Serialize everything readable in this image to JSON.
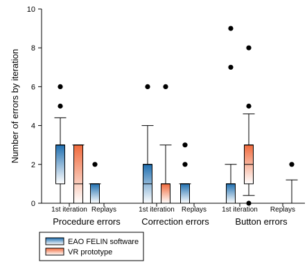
{
  "chart_data": {
    "type": "boxplot",
    "ylabel": "Number of errors by iteration",
    "ylim": [
      0,
      10
    ],
    "yticks": [
      0,
      2,
      4,
      6,
      8,
      10
    ],
    "groups": [
      {
        "label": "Procedure errors",
        "categories": [
          "1st iteration",
          "Replays"
        ]
      },
      {
        "label": "Correction errors",
        "categories": [
          "1st iteration",
          "Replays"
        ]
      },
      {
        "label": "Button errors",
        "categories": [
          "1st iteration",
          "Replays"
        ]
      }
    ],
    "series": [
      {
        "name": "EAO FELIN software",
        "color_top": "#1f6fb0",
        "color_bottom": "#ffffff"
      },
      {
        "name": "VR prototype",
        "color_top": "#f06a3c",
        "color_bottom": "#ffffff"
      }
    ],
    "boxes": [
      {
        "group": 0,
        "category": 0,
        "series": 0,
        "q1": 1,
        "median": 3,
        "q3": 3,
        "whisker_low": 0,
        "whisker_high": 4.4,
        "outliers": [
          5,
          6
        ]
      },
      {
        "group": 0,
        "category": 0,
        "series": 1,
        "q1": 0,
        "median": 1,
        "q3": 3,
        "whisker_low": 0,
        "whisker_high": 3,
        "outliers": []
      },
      {
        "group": 0,
        "category": 1,
        "series": 0,
        "q1": 0,
        "median": 0,
        "q3": 1,
        "whisker_low": 0,
        "whisker_high": 1,
        "outliers": [
          2
        ]
      },
      {
        "group": 1,
        "category": 0,
        "series": 0,
        "q1": 0,
        "median": 1,
        "q3": 2,
        "whisker_low": 0,
        "whisker_high": 4,
        "outliers": [
          6
        ]
      },
      {
        "group": 1,
        "category": 0,
        "series": 1,
        "q1": 0,
        "median": 0,
        "q3": 1,
        "whisker_low": 0,
        "whisker_high": 3,
        "outliers": [
          6
        ]
      },
      {
        "group": 1,
        "category": 1,
        "series": 0,
        "q1": 0,
        "median": 0,
        "q3": 1,
        "whisker_low": 0,
        "whisker_high": 1,
        "outliers": [
          2,
          3
        ]
      },
      {
        "group": 2,
        "category": 0,
        "series": 0,
        "q1": 0,
        "median": 0,
        "q3": 1,
        "whisker_low": 0,
        "whisker_high": 2,
        "outliers": [
          7,
          9
        ]
      },
      {
        "group": 2,
        "category": 0,
        "series": 1,
        "q1": 1,
        "median": 2,
        "q3": 3,
        "whisker_low": 0.4,
        "whisker_high": 4.6,
        "outliers": [
          0,
          5,
          8
        ]
      },
      {
        "group": 2,
        "category": 1,
        "series": 1,
        "q1": 0,
        "median": 0,
        "q3": 0,
        "whisker_low": 0,
        "whisker_high": 1.2,
        "outliers": [
          2
        ]
      }
    ],
    "legend_position": "bottom-left",
    "grid": false
  }
}
